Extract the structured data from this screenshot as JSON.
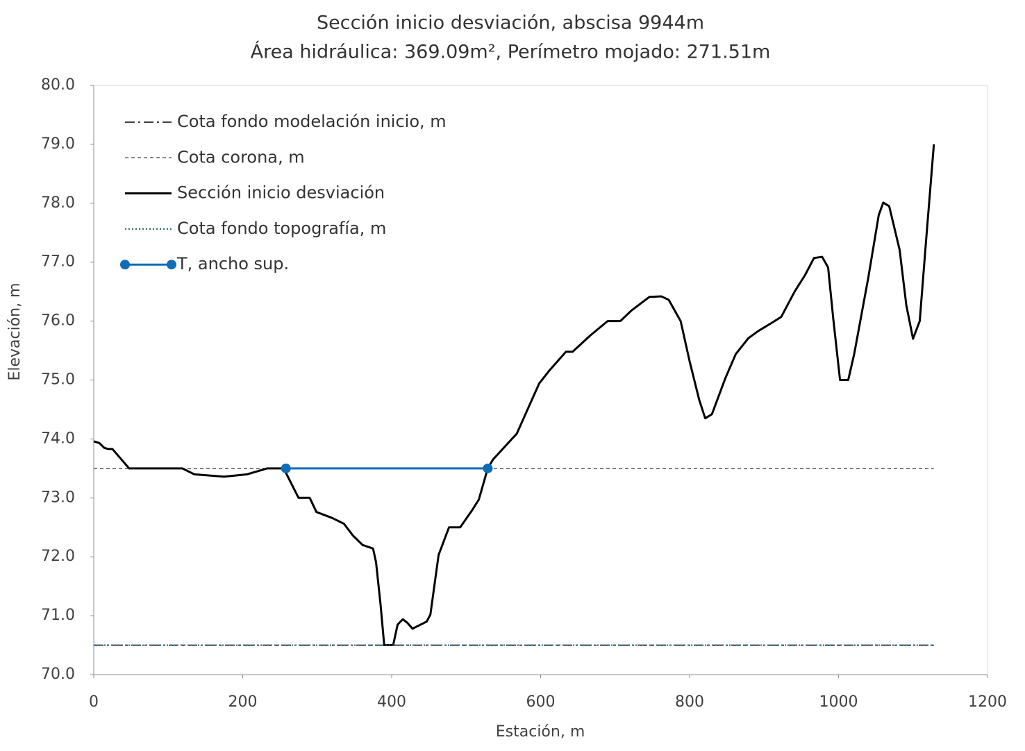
{
  "chart_data": {
    "type": "line",
    "title": "Sección inicio desviación, abscisa 9944m",
    "subtitle": "Área hidráulica: 369.09m², Perímetro mojado: 271.51m",
    "x_label": "Estación, m",
    "y_label": "Elevación, m",
    "xlim": [
      0,
      1200
    ],
    "xticks": [
      0,
      200,
      400,
      600,
      800,
      1000,
      1200
    ],
    "ylim": [
      70,
      80
    ],
    "yticks": [
      {
        "value": 70,
        "label": "70.0"
      },
      {
        "value": 71,
        "label": "71.0"
      },
      {
        "value": 72,
        "label": "72.0"
      },
      {
        "value": 73,
        "label": "73.0"
      },
      {
        "value": 74,
        "label": "74.0"
      },
      {
        "value": 75,
        "label": "75.0"
      },
      {
        "value": 76,
        "label": "76.0"
      },
      {
        "value": 77,
        "label": "77.0"
      },
      {
        "value": 78,
        "label": "78.0"
      },
      {
        "value": 79,
        "label": "79.0"
      },
      {
        "value": 80,
        "label": "80.0"
      }
    ],
    "legend": "upper left",
    "series": [
      {
        "name": "Cota fondo modelación inicio, m",
        "color": "#000000",
        "dash": "14,5,3,5",
        "width": 1.5,
        "x": [
          0,
          1128
        ],
        "values": [
          70.5,
          70.5
        ]
      },
      {
        "name": "Cota corona, m",
        "color": "#000000",
        "dash": "5,4",
        "width": 1,
        "x": [
          0,
          1128
        ],
        "values": [
          73.5,
          73.5
        ]
      },
      {
        "name": "Sección inicio desviación",
        "color": "#000000",
        "width": 3,
        "x": [
          0,
          7.5,
          14,
          19,
          25,
          47.5,
          119,
          135,
          175,
          206,
          233,
          255,
          275,
          290,
          299,
          320,
          336,
          348,
          361,
          375,
          379,
          385,
          390,
          402,
          408,
          415,
          421,
          428,
          447,
          452,
          463,
          477,
          492,
          508,
          517,
          529,
          536,
          568,
          598,
          611,
          634,
          643,
          667,
          690,
          707,
          722,
          746,
          762,
          772,
          788,
          800,
          813,
          821,
          830,
          848,
          862,
          879,
          892,
          909,
          923,
          941,
          955,
          967,
          978,
          986,
          993,
          1002,
          1013,
          1021,
          1040,
          1054,
          1060,
          1068,
          1082,
          1091,
          1100,
          1109,
          1118,
          1128
        ],
        "values": [
          73.96,
          73.93,
          73.85,
          73.83,
          73.83,
          73.5,
          73.5,
          73.4,
          73.36,
          73.4,
          73.5,
          73.5,
          73.0,
          73.0,
          72.76,
          72.66,
          72.56,
          72.36,
          72.2,
          72.14,
          71.91,
          71.2,
          70.5,
          70.5,
          70.85,
          70.94,
          70.88,
          70.78,
          70.9,
          71.02,
          72.03,
          72.5,
          72.5,
          72.79,
          72.97,
          73.5,
          73.65,
          74.09,
          74.94,
          75.15,
          75.48,
          75.48,
          75.76,
          76.0,
          76.0,
          76.18,
          76.41,
          76.42,
          76.36,
          76.0,
          75.32,
          74.66,
          74.35,
          74.42,
          75.03,
          75.44,
          75.71,
          75.83,
          75.96,
          76.07,
          76.5,
          76.78,
          77.07,
          77.09,
          76.91,
          76.03,
          75.0,
          75.0,
          75.44,
          76.74,
          77.8,
          78.01,
          77.95,
          77.21,
          76.27,
          75.7,
          76.0,
          77.44,
          79.0
        ]
      },
      {
        "name": "Cota fondo topografía, m",
        "color": "#1f6080",
        "dash": "2,3",
        "width": 2,
        "x": [
          0,
          1128
        ],
        "values": [
          70.5,
          70.5
        ]
      },
      {
        "name": "T, ancho sup.",
        "color": "#0f6cb6",
        "width": 3,
        "marker": true,
        "x": [
          258,
          529
        ],
        "values": [
          73.5,
          73.5
        ]
      }
    ]
  }
}
